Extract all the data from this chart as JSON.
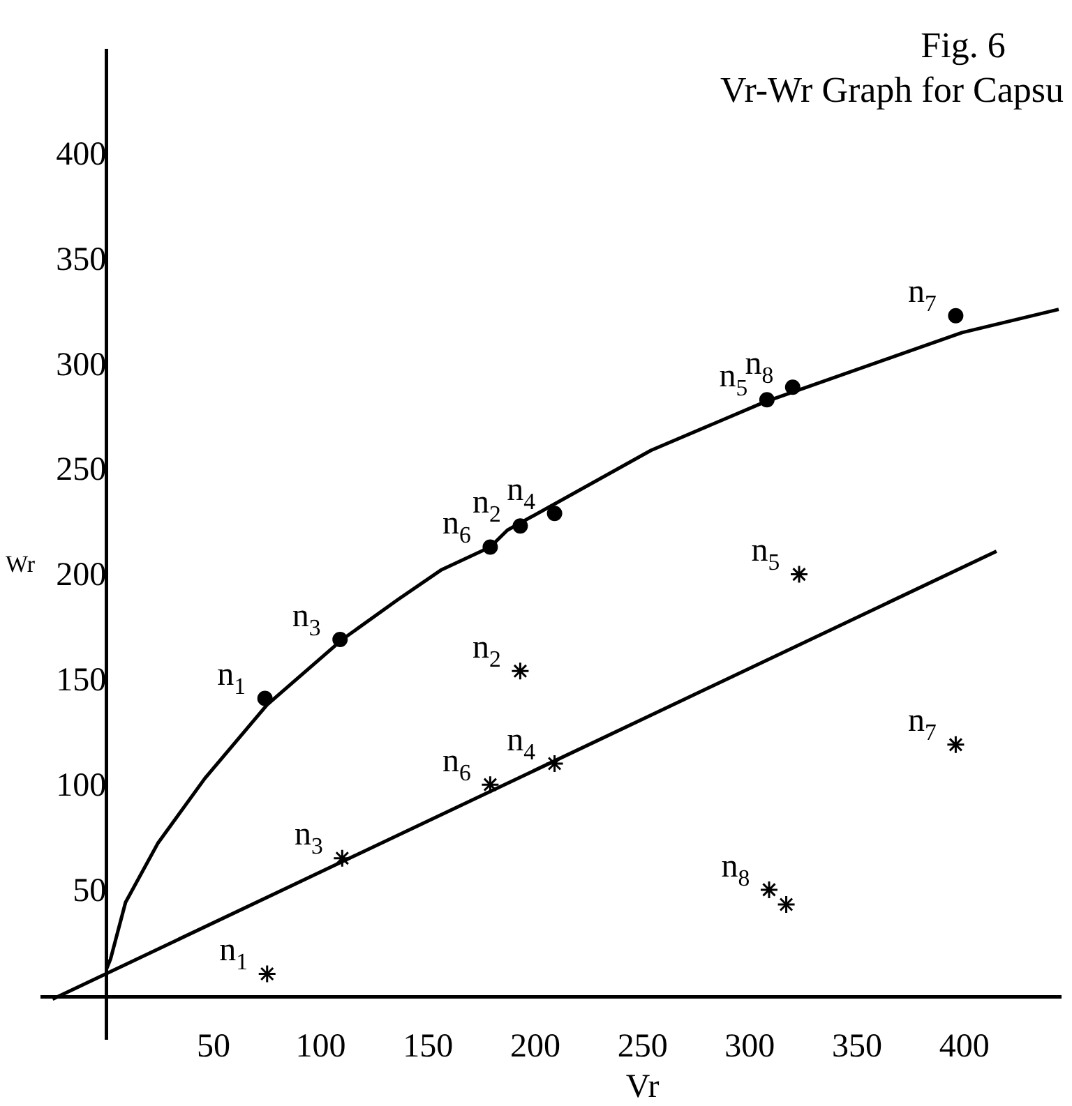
{
  "chart_data": {
    "type": "scatter",
    "title": "Fig. 6",
    "subtitle": "Vr-Wr Graph for Capsu",
    "xlabel": "Vr",
    "ylabel": "Wr",
    "xlim": [
      -30,
      445
    ],
    "ylim": [
      -20,
      450
    ],
    "xticks": [
      50,
      100,
      150,
      200,
      250,
      300,
      350,
      400
    ],
    "yticks": [
      50,
      100,
      150,
      200,
      250,
      300,
      350,
      400
    ],
    "grid": false,
    "legend": false,
    "series": [
      {
        "type": "line",
        "marker": "none",
        "color": "#000000",
        "x": [
          0,
          2,
          9,
          24,
          46,
          75,
          110,
          136,
          156,
          179,
          187,
          254,
          307,
          399,
          444
        ],
        "values": [
          13,
          18,
          45,
          73,
          104,
          139,
          170,
          189,
          203,
          214,
          222,
          260,
          283,
          316,
          327
        ]
      },
      {
        "type": "line",
        "marker": "none",
        "color": "#000000",
        "x": [
          -25,
          415
        ],
        "values": [
          -1,
          212
        ]
      },
      {
        "marker": "circle",
        "color": "#000000",
        "x": [
          74,
          109,
          179,
          193,
          209,
          308,
          320,
          396
        ],
        "values": [
          142,
          170,
          214,
          224,
          230,
          284,
          290,
          324
        ]
      },
      {
        "marker": "cross",
        "color": "#000000",
        "x": [
          75,
          110,
          179,
          193,
          209,
          323,
          396,
          309,
          317
        ],
        "values": [
          11,
          66,
          101,
          155,
          111,
          201,
          120,
          51,
          44
        ]
      }
    ],
    "annotations": [
      {
        "text": "n$_{1}$",
        "x": 74,
        "y": 142
      },
      {
        "text": "n$_{3}$",
        "x": 109,
        "y": 170
      },
      {
        "text": "n$_{6}$",
        "x": 179,
        "y": 214
      },
      {
        "text": "n$_{2}$",
        "x": 193,
        "y": 224
      },
      {
        "text": "n$_{4}$",
        "x": 209,
        "y": 230
      },
      {
        "text": "n$_{5}$",
        "x": 308,
        "y": 284
      },
      {
        "text": "n$_{8}$",
        "x": 320,
        "y": 290
      },
      {
        "text": "n$_{7}$",
        "x": 396,
        "y": 324
      },
      {
        "text": "n$_{1}$",
        "x": 75,
        "y": 11
      },
      {
        "text": "n$_{3}$",
        "x": 110,
        "y": 66
      },
      {
        "text": "n$_{6}$",
        "x": 179,
        "y": 101
      },
      {
        "text": "n$_{2}$",
        "x": 193,
        "y": 155
      },
      {
        "text": "n$_{4}$",
        "x": 209,
        "y": 111
      },
      {
        "text": "n$_{5}$",
        "x": 323,
        "y": 201
      },
      {
        "text": "n$_{7}$",
        "x": 396,
        "y": 120
      },
      {
        "text": "n$_{8}$",
        "x": 309,
        "y": 51
      }
    ]
  }
}
